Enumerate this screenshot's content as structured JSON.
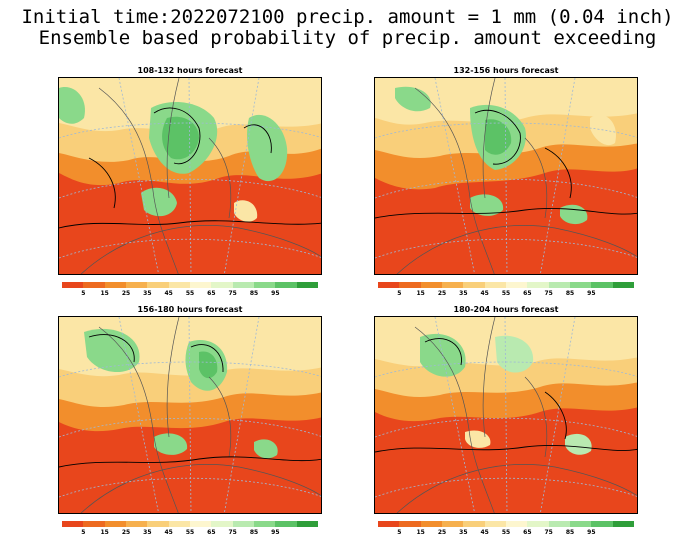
{
  "header": {
    "line1": "Initial time:2022072100 precip. amount = 1 mm (0.04 inch)",
    "line2": "Ensemble based probability of precip. amount exceeding"
  },
  "panels": [
    {
      "title": "108-132 hours forecast"
    },
    {
      "title": "132-156 hours forecast"
    },
    {
      "title": "156-180 hours forecast"
    },
    {
      "title": "180-204 hours forecast"
    }
  ],
  "colorbar": {
    "colors": [
      "#e8461c",
      "#ed6a20",
      "#f28e2c",
      "#f6b04e",
      "#f9cf7a",
      "#fbe6a6",
      "#fdf6cf",
      "#e3f6c8",
      "#b9eab0",
      "#8ad98a",
      "#5cc266",
      "#2f9e3a"
    ],
    "labels": [
      "5",
      "15",
      "25",
      "35",
      "45",
      "55",
      "65",
      "75",
      "85",
      "95"
    ]
  }
}
